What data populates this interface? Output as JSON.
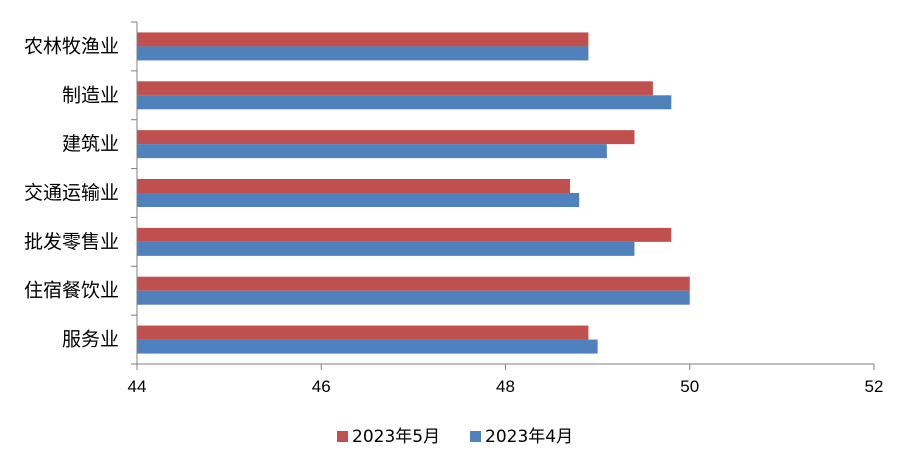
{
  "chart_data": {
    "type": "bar",
    "orientation": "horizontal",
    "categories": [
      "农林牧渔业",
      "制造业",
      "建筑业",
      "交通运输业",
      "批发零售业",
      "住宿餐饮业",
      "服务业"
    ],
    "series": [
      {
        "name": "2023年5月",
        "color": "#c0504d",
        "values": [
          48.9,
          49.6,
          49.4,
          48.7,
          49.8,
          50.0,
          48.9
        ]
      },
      {
        "name": "2023年4月",
        "color": "#4f81bd",
        "values": [
          48.9,
          49.8,
          49.1,
          48.8,
          49.4,
          50.0,
          49.0
        ]
      }
    ],
    "xlim": [
      44,
      52
    ],
    "xticks": [
      44,
      46,
      48,
      50,
      52
    ],
    "title": "",
    "xlabel": "",
    "ylabel": "",
    "grid": false,
    "legend_position": "bottom"
  }
}
